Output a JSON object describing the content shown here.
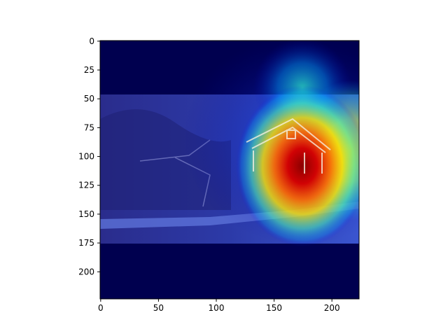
{
  "chart_data": {
    "type": "heatmap",
    "title": "",
    "xlabel": "",
    "ylabel": "",
    "xlim": [
      0,
      224
    ],
    "ylim": [
      224,
      0
    ],
    "xticks": [
      0,
      50,
      100,
      150,
      200
    ],
    "yticks": [
      0,
      25,
      50,
      75,
      100,
      125,
      150,
      175,
      200
    ],
    "xtick_labels": [
      "0",
      "50",
      "100",
      "150",
      "200"
    ],
    "ytick_labels": [
      "0",
      "25",
      "50",
      "75",
      "100",
      "125",
      "150",
      "175",
      "200"
    ],
    "image_extent_rows": [
      47,
      175
    ],
    "colormap": "jet",
    "background_color": "#00004f",
    "hotspots": [
      {
        "x": 175,
        "y": 110,
        "intensity": 1.0
      },
      {
        "x": 215,
        "y": 110,
        "intensity": 0.65
      },
      {
        "x": 175,
        "y": 60,
        "intensity": 0.35
      }
    ]
  }
}
